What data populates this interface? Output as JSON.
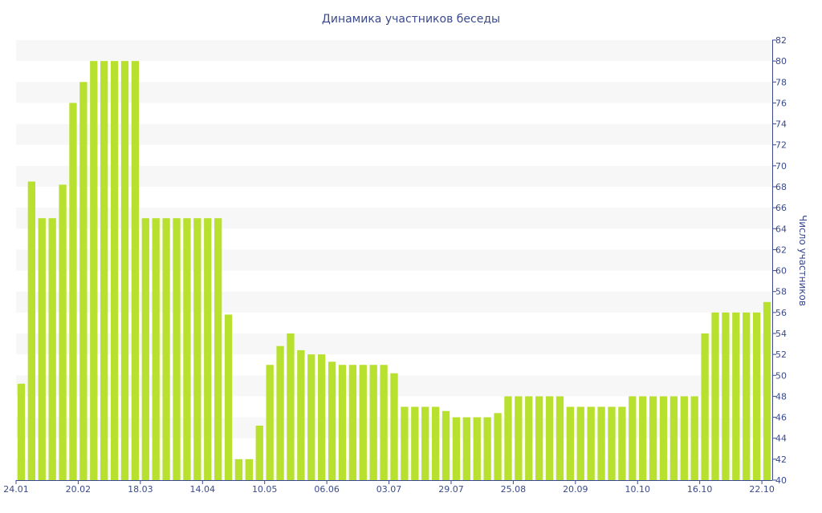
{
  "chart_data": {
    "type": "bar",
    "title": "Динамика участников беседы",
    "ylabel": "Число участников",
    "xlabel": "",
    "ylim": [
      40,
      82
    ],
    "y_ticks": [
      40,
      42,
      44,
      46,
      48,
      50,
      52,
      54,
      56,
      58,
      60,
      62,
      64,
      66,
      68,
      70,
      72,
      74,
      76,
      78,
      80,
      82
    ],
    "y_axis_side": "right",
    "x_tick_labels": [
      {
        "label": "24.01",
        "index": 0
      },
      {
        "label": "20.02",
        "index": 6
      },
      {
        "label": "18.03",
        "index": 12
      },
      {
        "label": "14.04",
        "index": 18
      },
      {
        "label": "10.05",
        "index": 24
      },
      {
        "label": "06.06",
        "index": 30
      },
      {
        "label": "03.07",
        "index": 36
      },
      {
        "label": "29.07",
        "index": 42
      },
      {
        "label": "25.08",
        "index": 48
      },
      {
        "label": "20.09",
        "index": 54
      },
      {
        "label": "10.10",
        "index": 60
      },
      {
        "label": "16.10",
        "index": 66
      },
      {
        "label": "22.10",
        "index": 72
      }
    ],
    "values": [
      49.2,
      68.5,
      65,
      65,
      68.2,
      76,
      78,
      80,
      80,
      80,
      80,
      80,
      65,
      65,
      65,
      65,
      65,
      65,
      65,
      65,
      55.8,
      42,
      42,
      45.2,
      51,
      52.8,
      54,
      52.4,
      52,
      52,
      51.3,
      51,
      51,
      51,
      51,
      51,
      50.2,
      47,
      47,
      47,
      47,
      46.6,
      46,
      46,
      46,
      46,
      46.4,
      48,
      48,
      48,
      48,
      48,
      48,
      47,
      47,
      47,
      47,
      47,
      47,
      48,
      48,
      48,
      48,
      48,
      48,
      48,
      54,
      56,
      56,
      56,
      56,
      56,
      57
    ],
    "bar_color": "#b8e02e",
    "band_color": "#f7f7f7",
    "grid": "alternating horizontal bands",
    "legend": "none"
  }
}
